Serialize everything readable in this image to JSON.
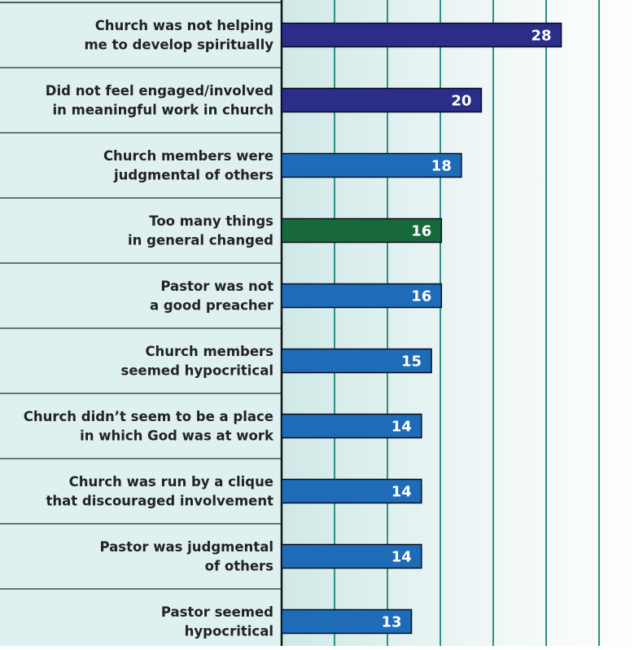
{
  "chart_data": {
    "type": "bar",
    "orientation": "horizontal",
    "categories": [
      [
        "Church was not helping",
        "me to develop spiritually"
      ],
      [
        "Did not feel engaged/involved",
        "in meaningful work in church"
      ],
      [
        "Church members were",
        "judgmental of others"
      ],
      [
        "Too many things",
        "in general changed"
      ],
      [
        "Pastor was not",
        "a good preacher"
      ],
      [
        "Church members",
        "seemed hypocritical"
      ],
      [
        "Church didn’t seem to be a place",
        "in which God was at work"
      ],
      [
        "Church was run by a clique",
        "that discouraged involvement"
      ],
      [
        "Pastor was judgmental",
        "of others"
      ],
      [
        "Pastor seemed",
        "hypocritical"
      ]
    ],
    "values": [
      28,
      20,
      18,
      16,
      16,
      15,
      14,
      14,
      14,
      13
    ],
    "value_labels": [
      "28",
      "20",
      "18",
      "16",
      "16",
      "15",
      "14",
      "14",
      "14",
      "13"
    ],
    "bar_colors": [
      "#2c2d88",
      "#2c2d88",
      "#1e6cb7",
      "#17693a",
      "#1e6cb7",
      "#1e6cb7",
      "#1e6cb7",
      "#1e6cb7",
      "#1e6cb7",
      "#1e6cb7"
    ],
    "xlim": [
      0,
      33
    ],
    "grid": true,
    "colors": {
      "label_panel": "#dff0f0",
      "plot_band_start": "#cfe9e7",
      "plot_band_end": "#ffffff",
      "grid": "#2f8f86",
      "row_divider": "#2a2a2a",
      "bar_stroke": "#0a0a1e"
    }
  }
}
